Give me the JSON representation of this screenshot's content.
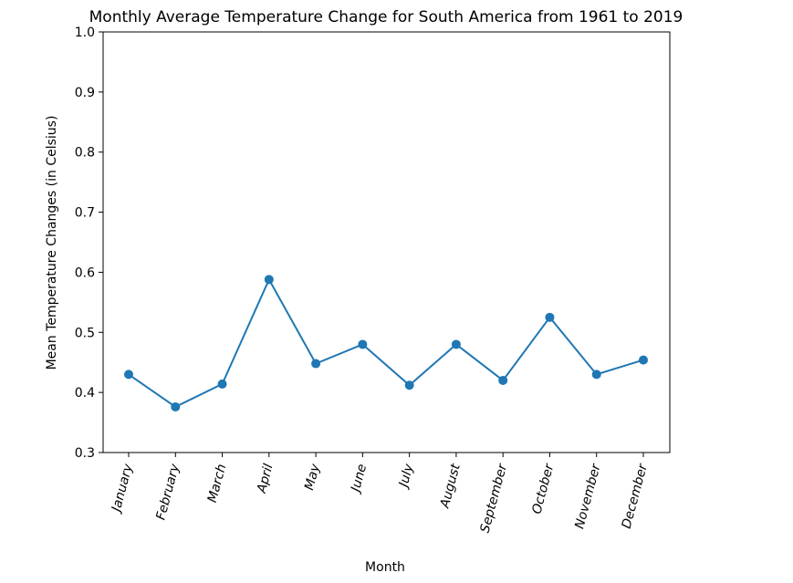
{
  "chart_data": {
    "type": "line",
    "title": "Monthly Average Temperature Change for South America from 1961 to 2019",
    "xlabel": "Month",
    "ylabel": "Mean Temperature Changes (in Celsius)",
    "categories": [
      "January",
      "February",
      "March",
      "April",
      "May",
      "June",
      "July",
      "August",
      "September",
      "October",
      "November",
      "December"
    ],
    "series": [
      {
        "values": [
          0.43,
          0.376,
          0.414,
          0.588,
          0.448,
          0.48,
          0.412,
          0.48,
          0.42,
          0.525,
          0.43,
          0.454
        ]
      }
    ],
    "ylim": [
      0.3,
      1.0
    ],
    "yticks": [
      "0.3",
      "0.4",
      "0.5",
      "0.6",
      "0.7",
      "0.8",
      "0.9",
      "1.0"
    ],
    "grid": false,
    "color": "#1f77b4"
  }
}
